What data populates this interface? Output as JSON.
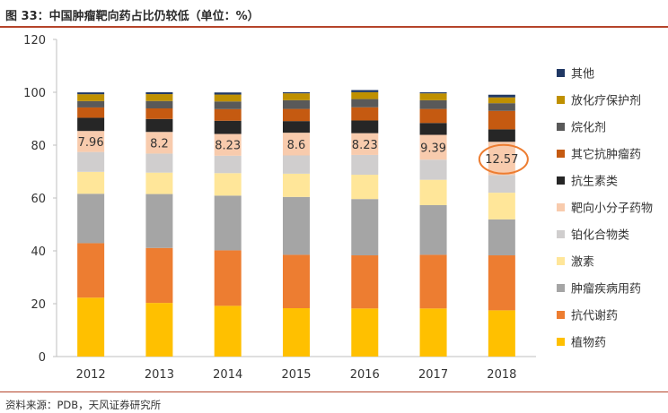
{
  "header": {
    "title": "图 33：中国肿瘤靶向药占比仍较低（单位：%）"
  },
  "footer": {
    "source": "资料来源：PDB，天风证券研究所"
  },
  "chart_data": {
    "type": "bar",
    "stacked": true,
    "categories": [
      "2012",
      "2013",
      "2014",
      "2015",
      "2016",
      "2017",
      "2018"
    ],
    "ylim": [
      0,
      120
    ],
    "yticks": [
      0,
      20,
      40,
      60,
      80,
      100,
      120
    ],
    "grid": false,
    "legend_position": "right",
    "highlight": {
      "category": "2018",
      "series": "靶向小分子药物"
    },
    "series": [
      {
        "name": "植物药",
        "color": "#ffc000",
        "values": [
          22.3,
          20.3,
          19.2,
          18.3,
          18.2,
          18.2,
          17.5
        ]
      },
      {
        "name": "抗代谢药",
        "color": "#ed7d31",
        "values": [
          20.6,
          20.8,
          21.0,
          20.2,
          20.1,
          20.3,
          20.8
        ]
      },
      {
        "name": "肿瘤疾病用药",
        "color": "#a5a5a5",
        "values": [
          18.7,
          20.4,
          20.7,
          21.9,
          21.3,
          18.8,
          13.6
        ]
      },
      {
        "name": "激素",
        "color": "#ffe699",
        "values": [
          8.3,
          8.1,
          8.5,
          8.8,
          9.2,
          9.6,
          10.1
        ]
      },
      {
        "name": "铂化合物类",
        "color": "#d0cece",
        "values": [
          7.5,
          7.2,
          6.6,
          6.9,
          7.5,
          7.6,
          6.7
        ]
      },
      {
        "name": "靶向小分子药物",
        "color": "#f8cbad",
        "values": [
          7.96,
          8.2,
          8.23,
          8.6,
          8.23,
          9.39,
          12.57
        ],
        "labels": [
          "7.96",
          "8.2",
          "8.23",
          "8.6",
          "8.23",
          "9.39",
          "12.57"
        ]
      },
      {
        "name": "抗生素类",
        "color": "#262626",
        "values": [
          5.0,
          4.9,
          5.0,
          4.4,
          4.8,
          4.5,
          4.7
        ]
      },
      {
        "name": "其它抗肿瘤药",
        "color": "#c55a11",
        "values": [
          3.9,
          4.0,
          4.4,
          4.6,
          5.0,
          5.3,
          7.0
        ]
      },
      {
        "name": "烷化剂",
        "color": "#595959",
        "values": [
          2.4,
          2.8,
          2.9,
          3.3,
          3.1,
          3.3,
          2.9
        ]
      },
      {
        "name": "放化疗保护剂",
        "color": "#bf9000",
        "values": [
          2.6,
          2.6,
          2.6,
          2.6,
          2.6,
          2.6,
          2.2
        ]
      },
      {
        "name": "其他",
        "color": "#203864",
        "values": [
          0.7,
          0.7,
          0.8,
          0.4,
          0.8,
          0.4,
          1.0
        ]
      }
    ]
  }
}
